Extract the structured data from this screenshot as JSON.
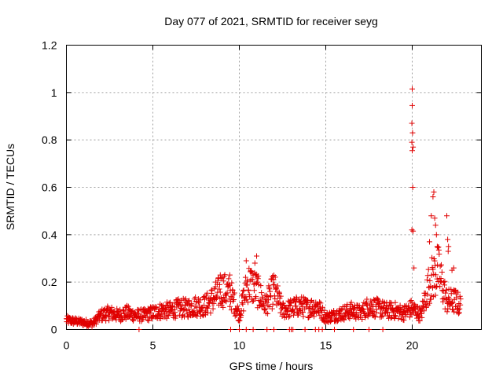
{
  "chart_data": {
    "type": "scatter",
    "title": "Day 077 of 2021, SRMTID for receiver seyg",
    "xlabel": "GPS time / hours",
    "ylabel": "SRMTID / TECUs",
    "xlim": [
      0,
      24
    ],
    "ylim": [
      0,
      1.2
    ],
    "xticks": [
      0,
      5,
      10,
      15,
      20
    ],
    "xtick_labels": [
      "0",
      "5",
      "10",
      "15",
      "20"
    ],
    "yticks": [
      0,
      0.2,
      0.4,
      0.6,
      0.8,
      1,
      1.2
    ],
    "ytick_labels": [
      "0",
      "0.2",
      "0.4",
      "0.6",
      "0.8",
      "1",
      "1.2"
    ],
    "grid": true,
    "legend": "none",
    "marker": "+",
    "color": "#e00000",
    "series": [
      {
        "name": "SRMTID",
        "envelope": [
          {
            "x": 0.0,
            "y": 0.04
          },
          {
            "x": 0.5,
            "y": 0.035
          },
          {
            "x": 1.0,
            "y": 0.03
          },
          {
            "x": 1.5,
            "y": 0.025
          },
          {
            "x": 2.0,
            "y": 0.06
          },
          {
            "x": 2.5,
            "y": 0.07
          },
          {
            "x": 3.0,
            "y": 0.06
          },
          {
            "x": 3.5,
            "y": 0.07
          },
          {
            "x": 4.0,
            "y": 0.06
          },
          {
            "x": 4.5,
            "y": 0.06
          },
          {
            "x": 5.0,
            "y": 0.07
          },
          {
            "x": 5.5,
            "y": 0.08
          },
          {
            "x": 6.0,
            "y": 0.08
          },
          {
            "x": 6.5,
            "y": 0.09
          },
          {
            "x": 7.0,
            "y": 0.09
          },
          {
            "x": 7.5,
            "y": 0.1
          },
          {
            "x": 8.0,
            "y": 0.1
          },
          {
            "x": 8.5,
            "y": 0.13
          },
          {
            "x": 9.0,
            "y": 0.17
          },
          {
            "x": 9.5,
            "y": 0.15
          },
          {
            "x": 10.0,
            "y": 0.06
          },
          {
            "x": 10.5,
            "y": 0.2
          },
          {
            "x": 11.0,
            "y": 0.17
          },
          {
            "x": 11.5,
            "y": 0.1
          },
          {
            "x": 12.0,
            "y": 0.17
          },
          {
            "x": 12.5,
            "y": 0.08
          },
          {
            "x": 13.0,
            "y": 0.09
          },
          {
            "x": 13.5,
            "y": 0.1
          },
          {
            "x": 14.0,
            "y": 0.09
          },
          {
            "x": 14.5,
            "y": 0.1
          },
          {
            "x": 15.0,
            "y": 0.05
          },
          {
            "x": 15.5,
            "y": 0.06
          },
          {
            "x": 16.0,
            "y": 0.07
          },
          {
            "x": 16.5,
            "y": 0.08
          },
          {
            "x": 17.0,
            "y": 0.07
          },
          {
            "x": 17.5,
            "y": 0.1
          },
          {
            "x": 18.0,
            "y": 0.09
          },
          {
            "x": 18.5,
            "y": 0.08
          },
          {
            "x": 19.0,
            "y": 0.08
          },
          {
            "x": 19.5,
            "y": 0.07
          },
          {
            "x": 20.0,
            "y": 0.09
          },
          {
            "x": 20.5,
            "y": 0.06
          },
          {
            "x": 21.0,
            "y": 0.2
          },
          {
            "x": 21.5,
            "y": 0.25
          },
          {
            "x": 22.0,
            "y": 0.12
          },
          {
            "x": 22.5,
            "y": 0.12
          },
          {
            "x": 22.8,
            "y": 0.1
          }
        ],
        "outliers": [
          {
            "x": 20.0,
            "y": 1.015
          },
          {
            "x": 20.0,
            "y": 0.945
          },
          {
            "x": 19.98,
            "y": 0.87
          },
          {
            "x": 20.02,
            "y": 0.83
          },
          {
            "x": 19.98,
            "y": 0.79
          },
          {
            "x": 20.05,
            "y": 0.77
          },
          {
            "x": 20.0,
            "y": 0.755
          },
          {
            "x": 20.03,
            "y": 0.6
          },
          {
            "x": 19.98,
            "y": 0.42
          },
          {
            "x": 20.05,
            "y": 0.415
          },
          {
            "x": 20.1,
            "y": 0.26
          },
          {
            "x": 21.25,
            "y": 0.58
          },
          {
            "x": 21.2,
            "y": 0.56
          },
          {
            "x": 21.1,
            "y": 0.48
          },
          {
            "x": 21.3,
            "y": 0.47
          },
          {
            "x": 21.35,
            "y": 0.44
          },
          {
            "x": 21.4,
            "y": 0.4
          },
          {
            "x": 21.0,
            "y": 0.37
          },
          {
            "x": 21.45,
            "y": 0.35
          },
          {
            "x": 22.0,
            "y": 0.48
          },
          {
            "x": 22.05,
            "y": 0.38
          },
          {
            "x": 22.1,
            "y": 0.35
          },
          {
            "x": 22.08,
            "y": 0.33
          },
          {
            "x": 10.4,
            "y": 0.29
          },
          {
            "x": 11.0,
            "y": 0.31
          },
          {
            "x": 10.9,
            "y": 0.28
          },
          {
            "x": 9.45,
            "y": 0.23
          },
          {
            "x": 8.9,
            "y": 0.23
          },
          {
            "x": 22.4,
            "y": 0.26
          },
          {
            "x": 22.3,
            "y": 0.25
          }
        ],
        "zero_points_x": [
          4.2,
          9.5,
          10.0,
          10.4,
          10.8,
          11.6,
          12.0,
          12.9,
          13.0,
          13.1,
          13.8,
          14.4,
          14.6,
          14.8,
          15.5,
          16.6,
          17.5,
          18.3
        ]
      }
    ]
  }
}
